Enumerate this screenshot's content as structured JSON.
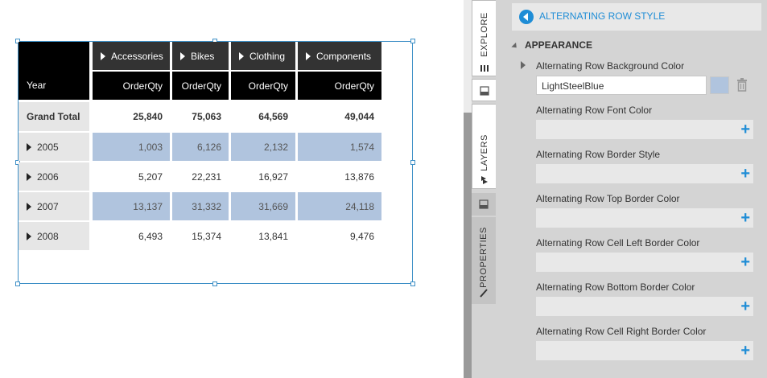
{
  "table": {
    "column_groups": [
      "Accessories",
      "Bikes",
      "Clothing",
      "Components"
    ],
    "row_header": "Year",
    "measure_label": "OrderQty",
    "grand_total_label": "Grand Total",
    "grand_total_values": [
      "25,840",
      "75,063",
      "64,569",
      "49,044"
    ],
    "rows": [
      {
        "label": "2005",
        "values": [
          "1,003",
          "6,126",
          "2,132",
          "1,574"
        ],
        "alternating": true
      },
      {
        "label": "2006",
        "values": [
          "5,207",
          "22,231",
          "16,927",
          "13,876"
        ],
        "alternating": false
      },
      {
        "label": "2007",
        "values": [
          "13,137",
          "31,332",
          "31,669",
          "24,118"
        ],
        "alternating": true
      },
      {
        "label": "2008",
        "values": [
          "6,493",
          "15,374",
          "13,841",
          "9,476"
        ],
        "alternating": false
      }
    ],
    "alternating_color": "#b0c4de"
  },
  "side_tabs": {
    "explore": "EXPLORE",
    "layers": "LAYERS",
    "properties": "PROPERTIES"
  },
  "panel": {
    "back_title": "ALTERNATING ROW STYLE",
    "section_title": "APPEARANCE",
    "background": {
      "label": "Alternating Row Background Color",
      "value": "LightSteelBlue",
      "swatch_color": "#b0c4de"
    },
    "properties": [
      {
        "label": "Alternating Row Font Color"
      },
      {
        "label": "Alternating Row Border Style"
      },
      {
        "label": "Alternating Row Top Border Color"
      },
      {
        "label": "Alternating Row Cell Left Border Color"
      },
      {
        "label": "Alternating Row Bottom Border Color"
      },
      {
        "label": "Alternating Row Cell Right Border Color"
      }
    ],
    "accent_color": "#1f8dd6"
  }
}
